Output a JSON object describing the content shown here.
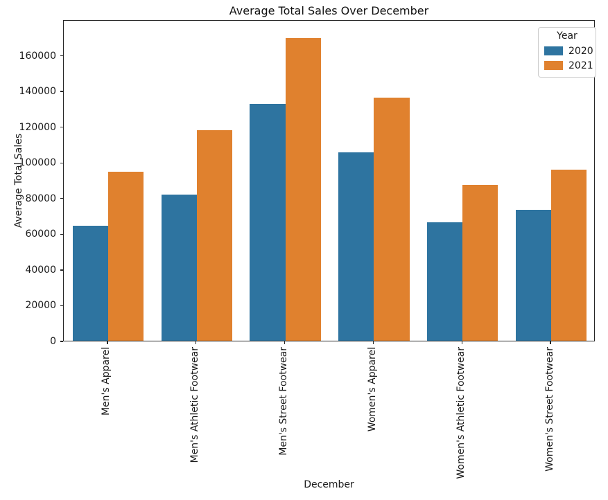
{
  "chart_data": {
    "type": "bar",
    "title": "Average Total Sales Over December",
    "xlabel": "December",
    "ylabel": "Average Total Sales",
    "categories": [
      "Men's Apparel",
      "Men's Athletic Footwear",
      "Men's Street Footwear",
      "Women's Apparel",
      "Women's Athletic Footwear",
      "Women's Street Footwear"
    ],
    "series": [
      {
        "name": "2020",
        "color": "#2e74a0",
        "values": [
          64400,
          82000,
          132500,
          105500,
          66400,
          73500
        ]
      },
      {
        "name": "2021",
        "color": "#e0812e",
        "values": [
          94500,
          118000,
          169600,
          136000,
          87200,
          95800
        ]
      }
    ],
    "legend_title": "Year",
    "legend_position": "upper right",
    "ylim": [
      0,
      180000
    ],
    "ytick_step": 20000,
    "yticks": [
      0,
      20000,
      40000,
      60000,
      80000,
      100000,
      120000,
      140000,
      160000
    ],
    "grid": false,
    "colors": {
      "bar_2020": "#2e74a0",
      "bar_2021": "#e0812e",
      "spine": "#262626",
      "legend_border": "#cccccc"
    }
  }
}
